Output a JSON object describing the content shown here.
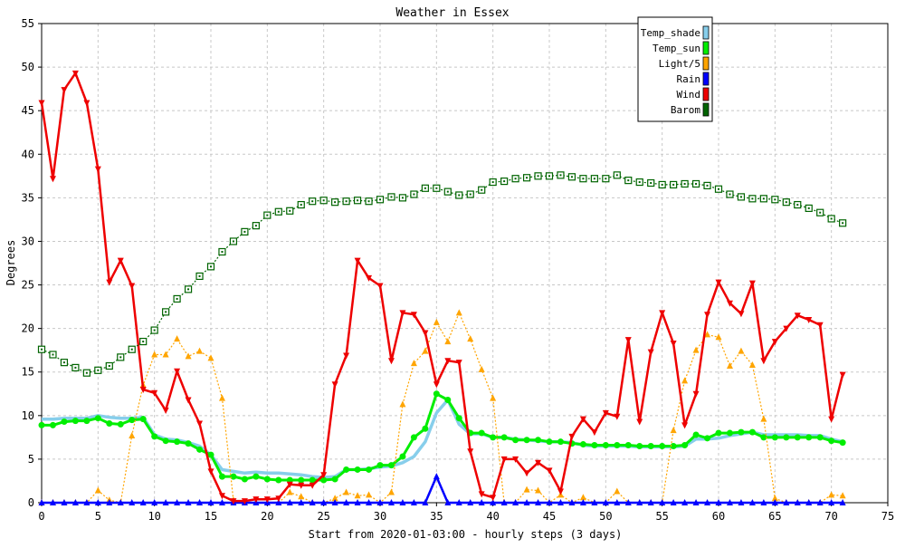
{
  "chart_data": {
    "type": "line",
    "title": "Weather in Essex",
    "xlabel": "Start from 2020-01-03:00 - hourly steps (3 days)",
    "ylabel": "Degrees",
    "xlim": [
      0,
      75
    ],
    "ylim": [
      0,
      55
    ],
    "xticks": [
      0,
      5,
      10,
      15,
      20,
      25,
      30,
      35,
      40,
      45,
      50,
      55,
      60,
      65,
      70,
      75
    ],
    "yticks": [
      0,
      5,
      10,
      15,
      20,
      25,
      30,
      35,
      40,
      45,
      50,
      55
    ],
    "grid": true,
    "legend_position": "top-right",
    "series": [
      {
        "name": "Temp_shade",
        "color": "#87ceeb",
        "marker": "none",
        "values": [
          9.6,
          9.6,
          9.7,
          9.7,
          9.7,
          10.0,
          9.8,
          9.7,
          9.7,
          9.8,
          7.8,
          7.3,
          7.2,
          6.9,
          6.5,
          5.5,
          3.8,
          3.6,
          3.4,
          3.5,
          3.4,
          3.4,
          3.3,
          3.2,
          3.0,
          2.9,
          3.0,
          3.8,
          3.8,
          3.9,
          4.1,
          4.2,
          4.6,
          5.3,
          7.0,
          10.3,
          11.8,
          9.0,
          7.9,
          7.9,
          7.5,
          7.5,
          7.3,
          7.2,
          7.1,
          7.0,
          7.0,
          6.9,
          6.6,
          6.5,
          6.5,
          6.5,
          6.5,
          6.4,
          6.4,
          6.4,
          6.4,
          6.5,
          7.3,
          7.3,
          7.4,
          7.7,
          7.9,
          8.1,
          7.8,
          7.8,
          7.8,
          7.8,
          7.7,
          7.7,
          7.3,
          7.0
        ]
      },
      {
        "name": "Temp_sun",
        "color": "#00ee00",
        "marker": "circle",
        "values": [
          8.9,
          8.9,
          9.3,
          9.4,
          9.4,
          9.7,
          9.1,
          9.0,
          9.5,
          9.6,
          7.6,
          7.1,
          7.0,
          6.8,
          6.1,
          5.5,
          3.0,
          3.0,
          2.7,
          3.0,
          2.7,
          2.6,
          2.6,
          2.6,
          2.6,
          2.6,
          2.7,
          3.8,
          3.8,
          3.8,
          4.3,
          4.3,
          5.3,
          7.5,
          8.5,
          12.5,
          11.8,
          9.7,
          8.0,
          8.0,
          7.5,
          7.5,
          7.2,
          7.2,
          7.2,
          7.0,
          7.0,
          6.8,
          6.7,
          6.6,
          6.6,
          6.6,
          6.6,
          6.5,
          6.5,
          6.5,
          6.5,
          6.6,
          7.8,
          7.4,
          8.0,
          8.0,
          8.1,
          8.1,
          7.5,
          7.5,
          7.5,
          7.5,
          7.5,
          7.5,
          7.1,
          6.9
        ]
      },
      {
        "name": "Light/5",
        "color": "#ffa500",
        "marker": "triangle-up",
        "values": [
          0,
          0,
          0,
          0,
          0,
          1.4,
          0.3,
          0,
          7.7,
          13.5,
          17.0,
          17.0,
          18.8,
          16.8,
          17.4,
          16.6,
          12.0,
          0.3,
          0,
          0,
          0,
          0,
          1.2,
          0.7,
          0,
          0,
          0.5,
          1.2,
          0.8,
          0.9,
          0,
          1.2,
          11.3,
          16.0,
          17.4,
          20.7,
          18.5,
          21.8,
          18.8,
          15.3,
          12.0,
          0,
          0,
          1.5,
          1.4,
          0,
          0.9,
          0,
          0.6,
          0,
          0,
          1.3,
          0,
          0,
          0,
          0,
          8.3,
          14.0,
          17.5,
          19.3,
          19.0,
          15.7,
          17.4,
          15.8,
          9.6,
          0.5,
          0,
          0,
          0,
          0,
          0.9,
          0.8
        ]
      },
      {
        "name": "Rain",
        "color": "#0000ff",
        "marker": "triangle-up",
        "values": [
          0,
          0,
          0,
          0,
          0,
          0,
          0,
          0,
          0,
          0,
          0,
          0,
          0,
          0,
          0,
          0,
          0,
          0,
          0,
          0,
          0,
          0,
          0,
          0,
          0,
          0,
          0,
          0,
          0,
          0,
          0,
          0,
          0,
          0,
          0,
          3.0,
          0,
          0,
          0,
          0,
          0,
          0,
          0,
          0,
          0,
          0,
          0,
          0,
          0,
          0,
          0,
          0,
          0,
          0,
          0,
          0,
          0,
          0,
          0,
          0,
          0,
          0,
          0,
          0,
          0,
          0,
          0,
          0,
          0,
          0,
          0,
          0
        ]
      },
      {
        "name": "Wind",
        "color": "#ee0000",
        "marker": "triangle-down",
        "values": [
          45.9,
          37.2,
          47.4,
          49.3,
          45.9,
          38.3,
          25.3,
          27.8,
          24.9,
          13.0,
          12.6,
          10.6,
          15.1,
          11.8,
          9.1,
          3.6,
          0.8,
          0.2,
          0.2,
          0.4,
          0.4,
          0.5,
          2.1,
          2.0,
          2.0,
          3.2,
          13.6,
          16.9,
          27.8,
          25.8,
          24.9,
          16.3,
          21.8,
          21.6,
          19.5,
          13.6,
          16.3,
          16.1,
          5.9,
          1.0,
          0.6,
          5.0,
          5.0,
          3.4,
          4.6,
          3.7,
          1.3,
          7.6,
          9.6,
          8.1,
          10.3,
          9.9,
          18.7,
          9.3,
          17.3,
          21.8,
          18.3,
          8.9,
          12.5,
          21.6,
          25.3,
          22.9,
          21.7,
          25.2,
          16.3,
          18.5,
          20.0,
          21.5,
          21.0,
          20.4,
          9.6,
          14.7
        ]
      },
      {
        "name": "Barom",
        "color": "#006400",
        "marker": "square",
        "values": [
          17.6,
          17.0,
          16.1,
          15.5,
          14.9,
          15.2,
          15.7,
          16.7,
          17.6,
          18.5,
          19.8,
          21.9,
          23.4,
          24.5,
          26.0,
          27.1,
          28.8,
          30.0,
          31.1,
          31.8,
          33.0,
          33.4,
          33.5,
          34.2,
          34.6,
          34.7,
          34.5,
          34.6,
          34.7,
          34.6,
          34.8,
          35.1,
          35.0,
          35.4,
          36.1,
          36.1,
          35.7,
          35.3,
          35.4,
          35.9,
          36.8,
          36.9,
          37.2,
          37.3,
          37.5,
          37.5,
          37.6,
          37.4,
          37.2,
          37.2,
          37.2,
          37.6,
          37.0,
          36.8,
          36.7,
          36.5,
          36.5,
          36.6,
          36.6,
          36.4,
          36.0,
          35.4,
          35.1,
          34.9,
          34.9,
          34.8,
          34.5,
          34.2,
          33.8,
          33.3,
          32.6,
          32.1
        ]
      }
    ]
  }
}
